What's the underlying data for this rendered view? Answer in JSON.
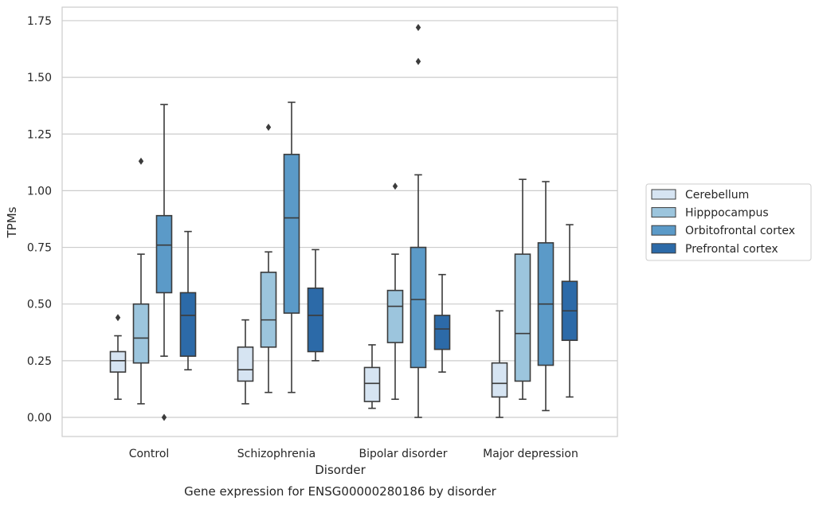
{
  "chart_data": {
    "type": "box",
    "caption": "Gene expression for ENSG00000280186 by disorder",
    "xlabel": "Disorder",
    "ylabel": "TPMs",
    "ylim": [
      -0.08,
      1.81
    ],
    "yticks": [
      "0.00",
      "0.25",
      "0.50",
      "0.75",
      "1.00",
      "1.25",
      "1.50",
      "1.75"
    ],
    "ytick_values": [
      0,
      0.25,
      0.5,
      0.75,
      1.0,
      1.25,
      1.5,
      1.75
    ],
    "grid": true,
    "legend_position": "right",
    "categories": [
      "Control",
      "Schizophrenia",
      "Bipolar disorder",
      "Major depression"
    ],
    "series": [
      {
        "name": "Cerebellum",
        "color": "#d6e4f2",
        "boxes": [
          {
            "min": 0.08,
            "q1": 0.2,
            "median": 0.25,
            "q3": 0.29,
            "max": 0.36,
            "outliers": [
              0.44
            ]
          },
          {
            "min": 0.06,
            "q1": 0.16,
            "median": 0.21,
            "q3": 0.31,
            "max": 0.43,
            "outliers": []
          },
          {
            "min": 0.04,
            "q1": 0.07,
            "median": 0.15,
            "q3": 0.22,
            "max": 0.32,
            "outliers": []
          },
          {
            "min": 0.0,
            "q1": 0.09,
            "median": 0.15,
            "q3": 0.24,
            "max": 0.47,
            "outliers": []
          }
        ]
      },
      {
        "name": "Hipppocampus",
        "color": "#9cc5dd",
        "boxes": [
          {
            "min": 0.06,
            "q1": 0.24,
            "median": 0.35,
            "q3": 0.5,
            "max": 0.72,
            "outliers": [
              1.13
            ]
          },
          {
            "min": 0.11,
            "q1": 0.31,
            "median": 0.43,
            "q3": 0.64,
            "max": 0.73,
            "outliers": [
              1.28
            ]
          },
          {
            "min": 0.08,
            "q1": 0.33,
            "median": 0.49,
            "q3": 0.56,
            "max": 0.72,
            "outliers": [
              1.02
            ]
          },
          {
            "min": 0.08,
            "q1": 0.16,
            "median": 0.37,
            "q3": 0.72,
            "max": 1.05,
            "outliers": []
          }
        ]
      },
      {
        "name": "Orbitofrontal cortex",
        "color": "#5b9ac8",
        "boxes": [
          {
            "min": 0.27,
            "q1": 0.55,
            "median": 0.76,
            "q3": 0.89,
            "max": 1.38,
            "outliers": [
              0.0
            ]
          },
          {
            "min": 0.11,
            "q1": 0.46,
            "median": 0.88,
            "q3": 1.16,
            "max": 1.39,
            "outliers": []
          },
          {
            "min": 0.0,
            "q1": 0.22,
            "median": 0.52,
            "q3": 0.75,
            "max": 1.07,
            "outliers": [
              1.72,
              1.57
            ]
          },
          {
            "min": 0.03,
            "q1": 0.23,
            "median": 0.5,
            "q3": 0.77,
            "max": 1.04,
            "outliers": []
          }
        ]
      },
      {
        "name": "Prefrontal cortex",
        "color": "#2c6aa8",
        "boxes": [
          {
            "min": 0.21,
            "q1": 0.27,
            "median": 0.45,
            "q3": 0.55,
            "max": 0.82,
            "outliers": []
          },
          {
            "min": 0.25,
            "q1": 0.29,
            "median": 0.45,
            "q3": 0.57,
            "max": 0.74,
            "outliers": []
          },
          {
            "min": 0.2,
            "q1": 0.3,
            "median": 0.39,
            "q3": 0.45,
            "max": 0.63,
            "outliers": []
          },
          {
            "min": 0.09,
            "q1": 0.34,
            "median": 0.47,
            "q3": 0.6,
            "max": 0.85,
            "outliers": []
          }
        ]
      }
    ]
  }
}
